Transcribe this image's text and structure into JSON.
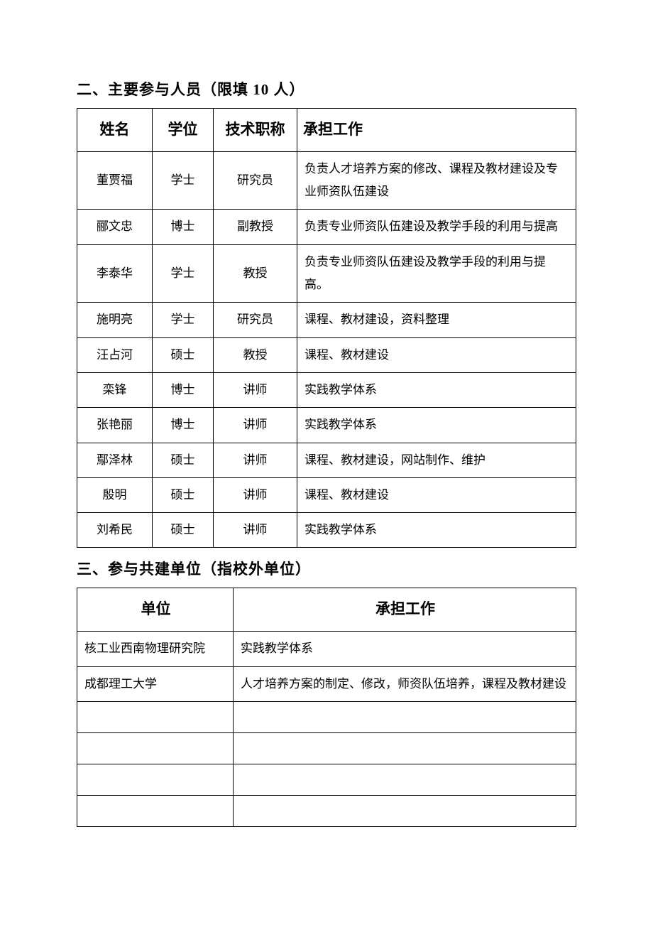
{
  "section1": {
    "heading": "二、主要参与人员（限填 10 人）",
    "columns": [
      "姓名",
      "学位",
      "技术职称",
      "承担工作"
    ],
    "rows": [
      {
        "name": "董贾福",
        "degree": "学士",
        "title": "研究员",
        "work": "负责人才培养方案的修改、课程及教材建设及专业师资队伍建设"
      },
      {
        "name": "郦文忠",
        "degree": "博士",
        "title": "副教授",
        "work": "负责专业师资队伍建设及教学手段的利用与提高"
      },
      {
        "name": "李泰华",
        "degree": "学士",
        "title": "教授",
        "work": "负责专业师资队伍建设及教学手段的利用与提高。"
      },
      {
        "name": "施明亮",
        "degree": "学士",
        "title": "研究员",
        "work": "课程、教材建设，资料整理"
      },
      {
        "name": "汪占河",
        "degree": "硕士",
        "title": "教授",
        "work": "课程、教材建设"
      },
      {
        "name": "栾锋",
        "degree": "博士",
        "title": "讲师",
        "work": "实践教学体系"
      },
      {
        "name": "张艳丽",
        "degree": "博士",
        "title": "讲师",
        "work": "实践教学体系"
      },
      {
        "name": "鄢泽林",
        "degree": "硕士",
        "title": "讲师",
        "work": "课程、教材建设，网站制作、维护"
      },
      {
        "name": "殷明",
        "degree": "硕士",
        "title": "讲师",
        "work": "课程、教材建设"
      },
      {
        "name": "刘希民",
        "degree": "硕士",
        "title": "讲师",
        "work": "实践教学体系"
      }
    ]
  },
  "section2": {
    "heading": "三、参与共建单位（指校外单位）",
    "columns": [
      "单位",
      "承担工作"
    ],
    "rows": [
      {
        "unit": "核工业西南物理研究院",
        "work": "实践教学体系"
      },
      {
        "unit": "成都理工大学",
        "work": "人才培养方案的制定、修改，师资队伍培养，课程及教材建设"
      },
      {
        "unit": "",
        "work": ""
      },
      {
        "unit": "",
        "work": ""
      },
      {
        "unit": "",
        "work": ""
      },
      {
        "unit": "",
        "work": ""
      }
    ]
  },
  "colors": {
    "text": "#000000",
    "border": "#000000",
    "background": "#ffffff"
  },
  "typography": {
    "heading_fontsize": 21,
    "header_cell_fontsize": 21,
    "body_cell_fontsize": 17,
    "font_family": "SimSun"
  }
}
